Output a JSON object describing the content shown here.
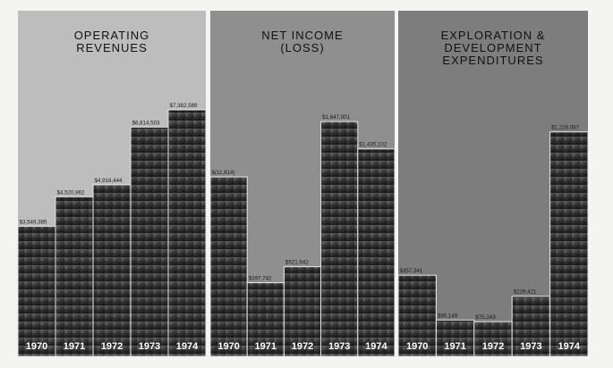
{
  "chart_data": [
    {
      "type": "bar",
      "title": "OPERATING REVENUES",
      "title_lines": [
        "OPERATING",
        "REVENUES"
      ],
      "categories": [
        "1970",
        "1971",
        "1972",
        "1973",
        "1974"
      ],
      "values": [
        3549385,
        4520962,
        4916444,
        6814503,
        7382589
      ],
      "value_labels": [
        "$3,549,385",
        "$4,520,962",
        "$4,916,444",
        "$6,814,503",
        "$7,382,589"
      ],
      "ylim": [
        0,
        8000000
      ],
      "legend": "none",
      "grid": false
    },
    {
      "type": "bar",
      "title": "NET INCOME (LOSS)",
      "title_lines": [
        "NET INCOME",
        "(LOSS)"
      ],
      "categories": [
        "1970",
        "1971",
        "1972",
        "1973",
        "1974"
      ],
      "values": [
        -11814,
        397742,
        521942,
        1647001,
        1435102
      ],
      "value_labels": [
        "$(11,814)",
        "$397,742",
        "$521,942",
        "$1,647,001",
        "$1,435,102"
      ],
      "ylim": [
        0,
        1800000
      ],
      "legend": "none",
      "grid": false
    },
    {
      "type": "bar",
      "title": "EXPLORATION & DEVELOPMENT EXPENDITURES",
      "title_lines": [
        "EXPLORATION &",
        "DEVELOPMENT",
        "EXPENDITURES"
      ],
      "categories": [
        "1970",
        "1971",
        "1972",
        "1973",
        "1974"
      ],
      "values": [
        357341,
        85149,
        75243,
        229421,
        1228087
      ],
      "value_labels": [
        "$357,341",
        "$85,149",
        "$75,243",
        "$229,421",
        "$1,228,087"
      ],
      "ylim": [
        0,
        1400000
      ],
      "legend": "none",
      "grid": false
    }
  ],
  "colors": {
    "page": "#f4f4f2",
    "panel_backgrounds": [
      "#bdbdbd",
      "#8f8f8f",
      "#7d7d7d"
    ],
    "photo_dark": "#2a2a2a",
    "photo_mid": "#4a4a4a",
    "title": "#111111",
    "value_label": "#f2f2f2",
    "year_label": "#ffffff"
  }
}
